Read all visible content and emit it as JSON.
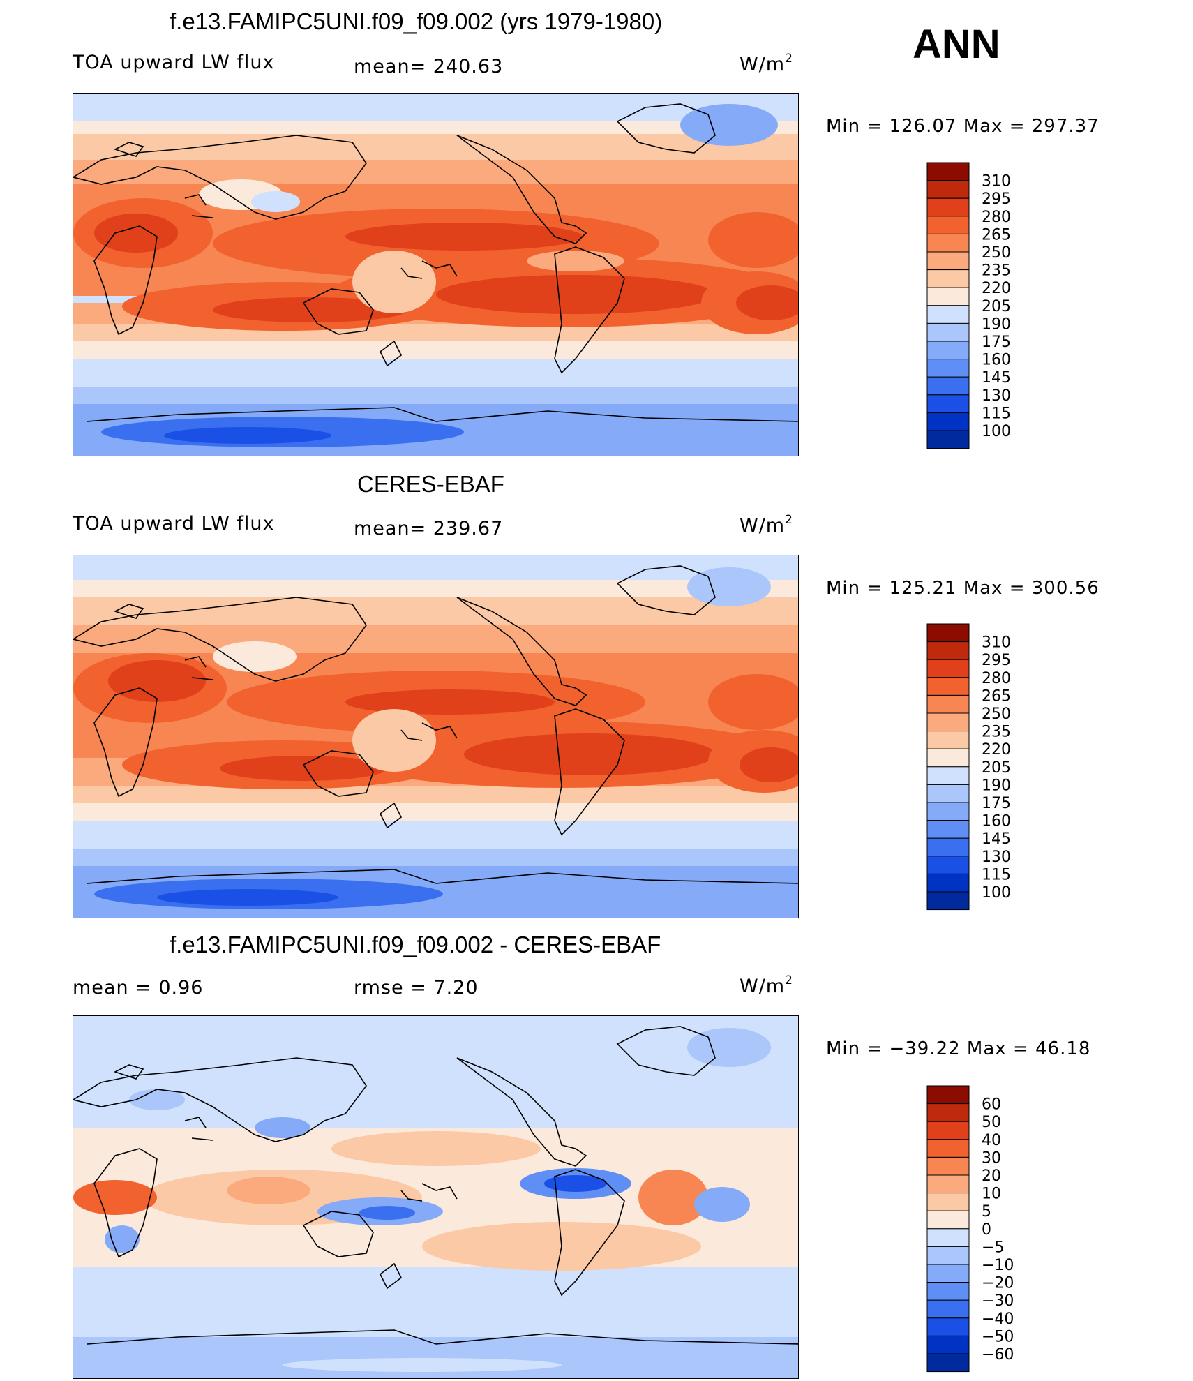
{
  "season": "ANN",
  "units": {
    "base": "W/m",
    "exp": "2"
  },
  "colors": {
    "abs_scale": [
      "#000080",
      "#002a9e",
      "#0033c4",
      "#1a50e6",
      "#3a6ff0",
      "#5f8ff5",
      "#85aaf7",
      "#aac6fa",
      "#cfe1fc",
      "#fbeadb",
      "#fcc9a6",
      "#fbaa7d",
      "#f78652",
      "#f1622f",
      "#e0401a",
      "#c02a0c",
      "#8c0c00"
    ],
    "diff_scale": [
      "#000080",
      "#002a9e",
      "#0033c4",
      "#1a50e6",
      "#3a6ff0",
      "#5f8ff5",
      "#85aaf7",
      "#aac6fa",
      "#cfe1fc",
      "#fbeadb",
      "#fcc9a6",
      "#fbaa7d",
      "#f78652",
      "#f1622f",
      "#e0401a",
      "#c02a0c",
      "#8c0c00"
    ],
    "coast": "#000000"
  },
  "panels": [
    {
      "title": "f.e13.FAMIPC5UNI.f09_f09.002 (yrs 1979-1980)",
      "left_label": "TOA upward LW flux",
      "center_label": "mean= 240.63",
      "minmax": "Min  =  126.07  Max  =  297.37"
    },
    {
      "title": "CERES-EBAF",
      "left_label": "TOA upward LW flux",
      "center_label": "mean= 239.67",
      "minmax": "Min  =  125.21  Max  =  300.56"
    },
    {
      "title": "f.e13.FAMIPC5UNI.f09_f09.002 - CERES-EBAF",
      "left_label": "mean  =      0.96",
      "center_label": "rmse  =      7.20",
      "minmax": "Min  =  −39.22  Max  =     46.18"
    }
  ],
  "chart_data": [
    {
      "type": "heatmap",
      "title": "f.e13.FAMIPC5UNI.f09_f09.002 (yrs 1979-1980)",
      "variable": "TOA upward LW flux",
      "units": "W/m2",
      "mean": 240.63,
      "min": 126.07,
      "max": 297.37,
      "colorbar_levels": [
        "310",
        "295",
        "280",
        "265",
        "250",
        "235",
        "220",
        "205",
        "190",
        "175",
        "160",
        "145",
        "130",
        "115",
        "100"
      ]
    },
    {
      "type": "heatmap",
      "title": "CERES-EBAF",
      "variable": "TOA upward LW flux",
      "units": "W/m2",
      "mean": 239.67,
      "min": 125.21,
      "max": 300.56,
      "colorbar_levels": [
        "310",
        "295",
        "280",
        "265",
        "250",
        "235",
        "220",
        "205",
        "190",
        "175",
        "160",
        "145",
        "130",
        "115",
        "100"
      ]
    },
    {
      "type": "heatmap",
      "title": "f.e13.FAMIPC5UNI.f09_f09.002 - CERES-EBAF",
      "units": "W/m2",
      "mean": 0.96,
      "rmse": 7.2,
      "min": -39.22,
      "max": 46.18,
      "colorbar_levels": [
        "60",
        "50",
        "40",
        "30",
        "20",
        "10",
        "5",
        "0",
        "−5",
        "−10",
        "−20",
        "−30",
        "−40",
        "−50",
        "−60"
      ]
    }
  ]
}
